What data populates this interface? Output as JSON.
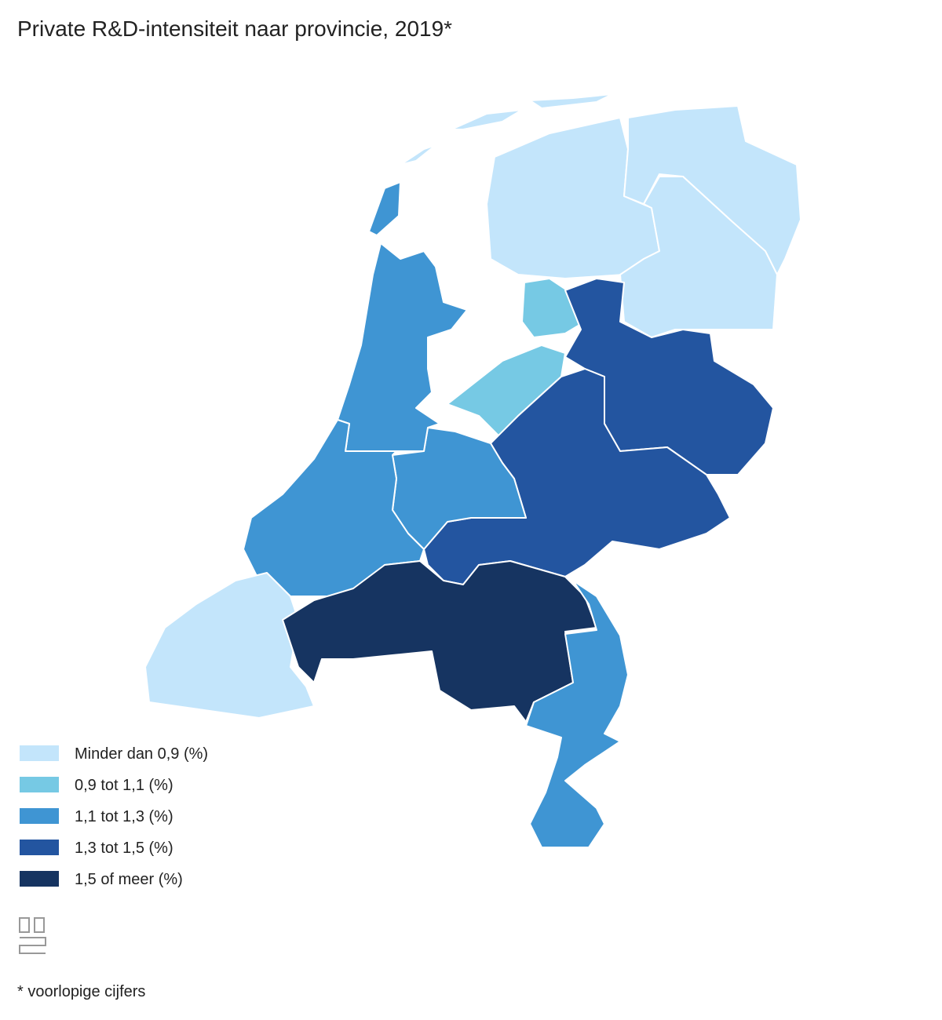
{
  "title": "Private R&D-intensiteit naar provincie, 2019*",
  "legend": {
    "items": [
      {
        "label": "Minder dan 0,9 (%)",
        "color": "#c3e5fb"
      },
      {
        "label": "0,9 tot 1,1 (%)",
        "color": "#76c9e4"
      },
      {
        "label": "1,1 tot 1,3 (%)",
        "color": "#3f95d3"
      },
      {
        "label": "1,3 tot 1,5 (%)",
        "color": "#2355a0"
      },
      {
        "label": "1,5 of meer (%)",
        "color": "#163461"
      }
    ]
  },
  "footnote": "* voorlopige cijfers"
}
